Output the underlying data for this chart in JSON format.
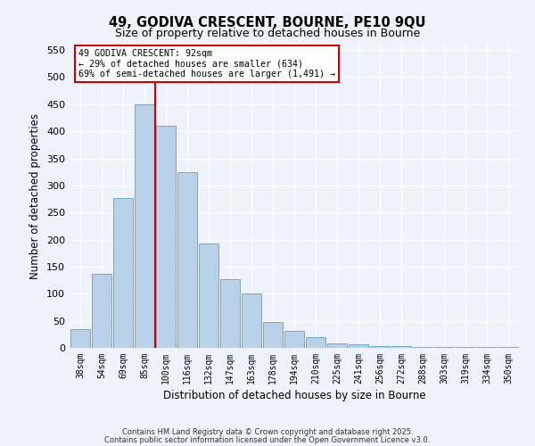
{
  "title": "49, GODIVA CRESCENT, BOURNE, PE10 9QU",
  "subtitle": "Size of property relative to detached houses in Bourne",
  "xlabel": "Distribution of detached houses by size in Bourne",
  "ylabel": "Number of detached properties",
  "bar_color": "#b8d0e8",
  "bar_edge_color": "#6aaad4",
  "background_color": "#eef2fa",
  "grid_color": "#ffffff",
  "categories": [
    "38sqm",
    "54sqm",
    "69sqm",
    "85sqm",
    "100sqm",
    "116sqm",
    "132sqm",
    "147sqm",
    "163sqm",
    "178sqm",
    "194sqm",
    "210sqm",
    "225sqm",
    "241sqm",
    "256sqm",
    "272sqm",
    "288sqm",
    "303sqm",
    "319sqm",
    "334sqm",
    "350sqm"
  ],
  "values": [
    35,
    137,
    277,
    450,
    410,
    325,
    192,
    127,
    101,
    47,
    32,
    20,
    8,
    6,
    4,
    3,
    2,
    2,
    1,
    1,
    2
  ],
  "vline_color": "#cc0000",
  "annotation_title": "49 GODIVA CRESCENT: 92sqm",
  "annotation_line1": "← 29% of detached houses are smaller (634)",
  "annotation_line2": "69% of semi-detached houses are larger (1,491) →",
  "annotation_box_color": "#ffffff",
  "annotation_box_edge": "#cc0000",
  "ylim": [
    0,
    560
  ],
  "yticks": [
    0,
    50,
    100,
    150,
    200,
    250,
    300,
    350,
    400,
    450,
    500,
    550
  ],
  "footer1": "Contains HM Land Registry data © Crown copyright and database right 2025.",
  "footer2": "Contains public sector information licensed under the Open Government Licence v3.0."
}
